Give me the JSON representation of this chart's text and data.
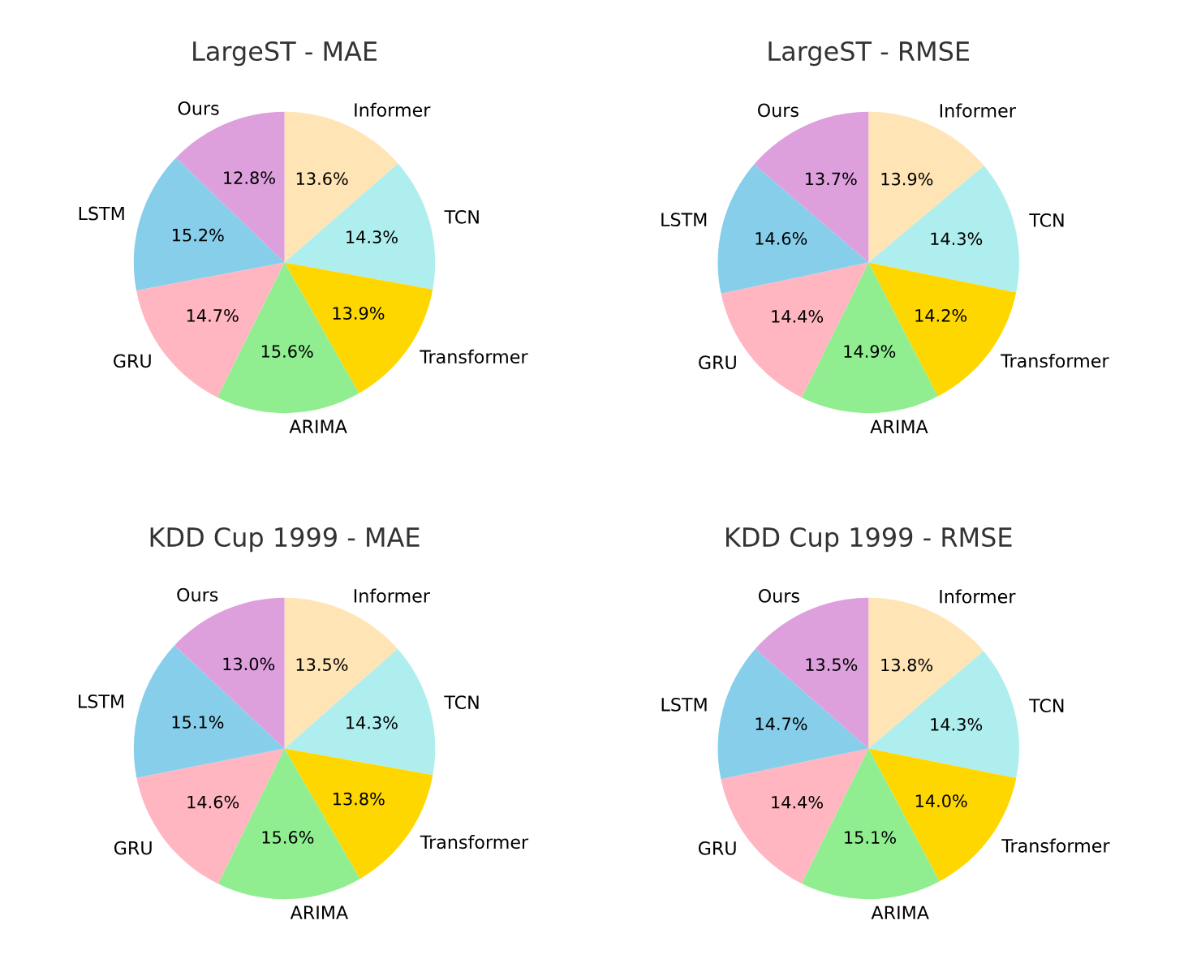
{
  "chart_data": [
    {
      "type": "pie",
      "title": "LargeST - MAE",
      "categories": [
        "Informer",
        "TCN",
        "Transformer",
        "ARIMA",
        "GRU",
        "LSTM",
        "Ours"
      ],
      "values": [
        13.6,
        14.3,
        13.9,
        15.6,
        14.7,
        15.2,
        12.8
      ],
      "value_labels": [
        "13.6%",
        "14.3%",
        "13.9%",
        "15.6%",
        "14.7%",
        "15.2%",
        "12.8%"
      ],
      "colors": [
        "#ffe4b5",
        "#afeeee",
        "#ffd700",
        "#90ee90",
        "#ffb6c1",
        "#87ceeb",
        "#dda0dd"
      ]
    },
    {
      "type": "pie",
      "title": "LargeST - RMSE",
      "categories": [
        "Informer",
        "TCN",
        "Transformer",
        "ARIMA",
        "GRU",
        "LSTM",
        "Ours"
      ],
      "values": [
        13.9,
        14.3,
        14.2,
        14.9,
        14.4,
        14.6,
        13.7
      ],
      "value_labels": [
        "13.9%",
        "14.3%",
        "14.2%",
        "14.9%",
        "14.4%",
        "14.6%",
        "13.7%"
      ],
      "colors": [
        "#ffe4b5",
        "#afeeee",
        "#ffd700",
        "#90ee90",
        "#ffb6c1",
        "#87ceeb",
        "#dda0dd"
      ]
    },
    {
      "type": "pie",
      "title": "KDD Cup 1999 - MAE",
      "categories": [
        "Informer",
        "TCN",
        "Transformer",
        "ARIMA",
        "GRU",
        "LSTM",
        "Ours"
      ],
      "values": [
        13.5,
        14.3,
        13.8,
        15.6,
        14.6,
        15.1,
        13.0
      ],
      "value_labels": [
        "13.5%",
        "14.3%",
        "13.8%",
        "15.6%",
        "14.6%",
        "15.1%",
        "13.0%"
      ],
      "colors": [
        "#ffe4b5",
        "#afeeee",
        "#ffd700",
        "#90ee90",
        "#ffb6c1",
        "#87ceeb",
        "#dda0dd"
      ]
    },
    {
      "type": "pie",
      "title": "KDD Cup 1999 - RMSE",
      "categories": [
        "Informer",
        "TCN",
        "Transformer",
        "ARIMA",
        "GRU",
        "LSTM",
        "Ours"
      ],
      "values": [
        13.8,
        14.3,
        14.0,
        15.1,
        14.4,
        14.7,
        13.5
      ],
      "value_labels": [
        "13.8%",
        "14.3%",
        "14.0%",
        "15.1%",
        "14.4%",
        "14.7%",
        "13.5%"
      ],
      "colors": [
        "#ffe4b5",
        "#afeeee",
        "#ffd700",
        "#90ee90",
        "#ffb6c1",
        "#87ceeb",
        "#dda0dd"
      ]
    }
  ]
}
